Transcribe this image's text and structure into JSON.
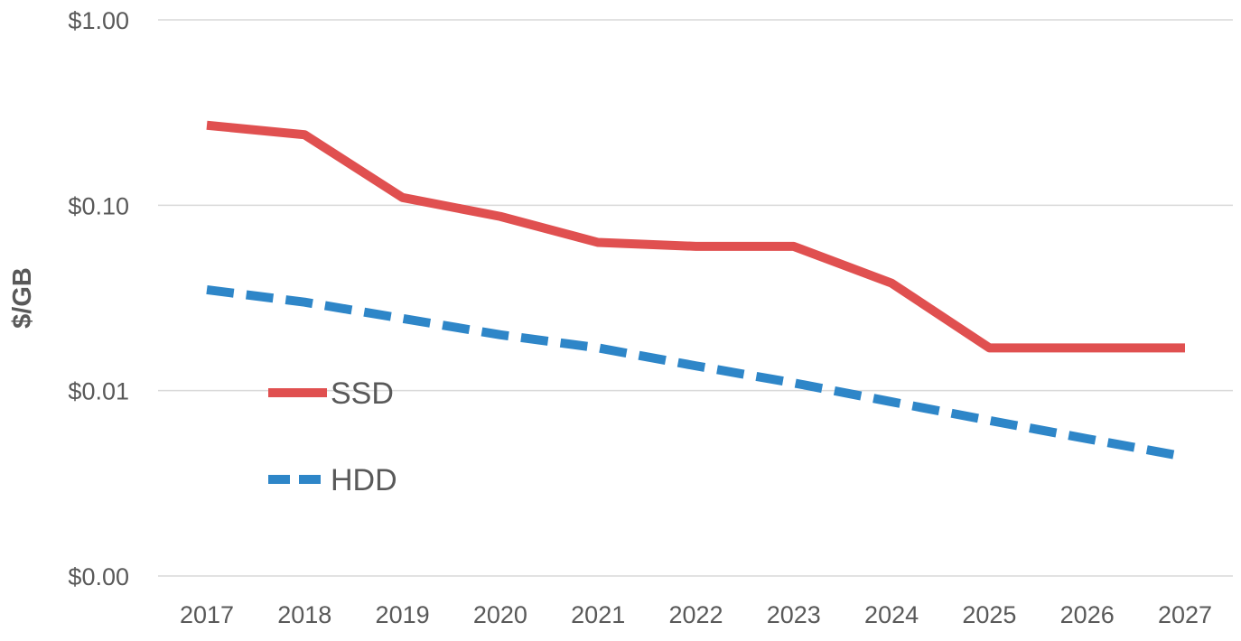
{
  "chart_data": {
    "type": "line",
    "title": "",
    "xlabel": "",
    "ylabel": "$/GB",
    "y_scale": "log",
    "ylim": [
      0.001,
      1
    ],
    "grid": true,
    "legend_position": "inside-left",
    "categories": [
      "2017",
      "2018",
      "2019",
      "2020",
      "2021",
      "2022",
      "2023",
      "2024",
      "2025",
      "2026",
      "2027"
    ],
    "y_ticks": [
      {
        "value": 1,
        "label": "$1.00"
      },
      {
        "value": 0.1,
        "label": "$0.10"
      },
      {
        "value": 0.01,
        "label": "$0.01"
      },
      {
        "value": 0.001,
        "label": "$0.00"
      }
    ],
    "series": [
      {
        "name": "SSD",
        "color": "#e05050",
        "style": "solid",
        "values": [
          0.27,
          0.24,
          0.11,
          0.087,
          0.063,
          0.06,
          0.06,
          0.038,
          0.017,
          0.017,
          0.017
        ]
      },
      {
        "name": "HDD",
        "color": "#2e86c8",
        "style": "dashed",
        "values": [
          0.035,
          0.03,
          0.0245,
          0.02,
          0.017,
          0.0136,
          0.011,
          0.0087,
          0.0069,
          0.0055,
          0.0044
        ]
      }
    ]
  }
}
